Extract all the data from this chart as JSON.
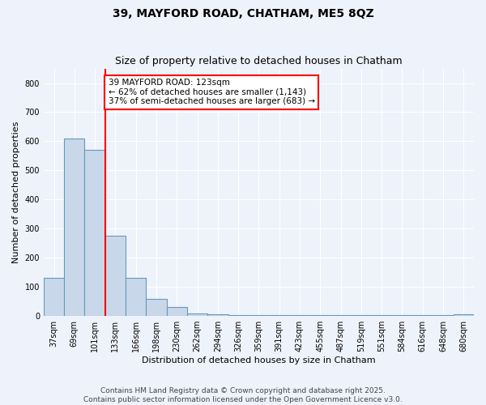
{
  "title1": "39, MAYFORD ROAD, CHATHAM, ME5 8QZ",
  "title2": "Size of property relative to detached houses in Chatham",
  "xlabel": "Distribution of detached houses by size in Chatham",
  "ylabel": "Number of detached properties",
  "bin_labels": [
    "37sqm",
    "69sqm",
    "101sqm",
    "133sqm",
    "166sqm",
    "198sqm",
    "230sqm",
    "262sqm",
    "294sqm",
    "326sqm",
    "359sqm",
    "391sqm",
    "423sqm",
    "455sqm",
    "487sqm",
    "519sqm",
    "551sqm",
    "584sqm",
    "616sqm",
    "648sqm",
    "680sqm"
  ],
  "bar_values": [
    130,
    610,
    570,
    275,
    130,
    60,
    30,
    10,
    5,
    3,
    3,
    2,
    2,
    2,
    2,
    2,
    2,
    2,
    2,
    2,
    5
  ],
  "bar_color": "#c8d8ea",
  "bar_edge_color": "#6699bb",
  "bar_linewidth": 0.8,
  "vline_color": "red",
  "vline_linewidth": 1.5,
  "vline_pos": 3.0,
  "annotation_text": "39 MAYFORD ROAD: 123sqm\n← 62% of detached houses are smaller (1,143)\n37% of semi-detached houses are larger (683) →",
  "annotation_box_color": "white",
  "annotation_box_edge_color": "red",
  "ylim": [
    0,
    850
  ],
  "yticks": [
    0,
    100,
    200,
    300,
    400,
    500,
    600,
    700,
    800
  ],
  "background_color": "#eef2fa",
  "grid_color": "#ffffff",
  "footer_text": "Contains HM Land Registry data © Crown copyright and database right 2025.\nContains public sector information licensed under the Open Government Licence v3.0.",
  "title1_fontsize": 10,
  "title2_fontsize": 9,
  "axis_label_fontsize": 8,
  "tick_fontsize": 7,
  "annotation_fontsize": 7.5,
  "footer_fontsize": 6.5
}
